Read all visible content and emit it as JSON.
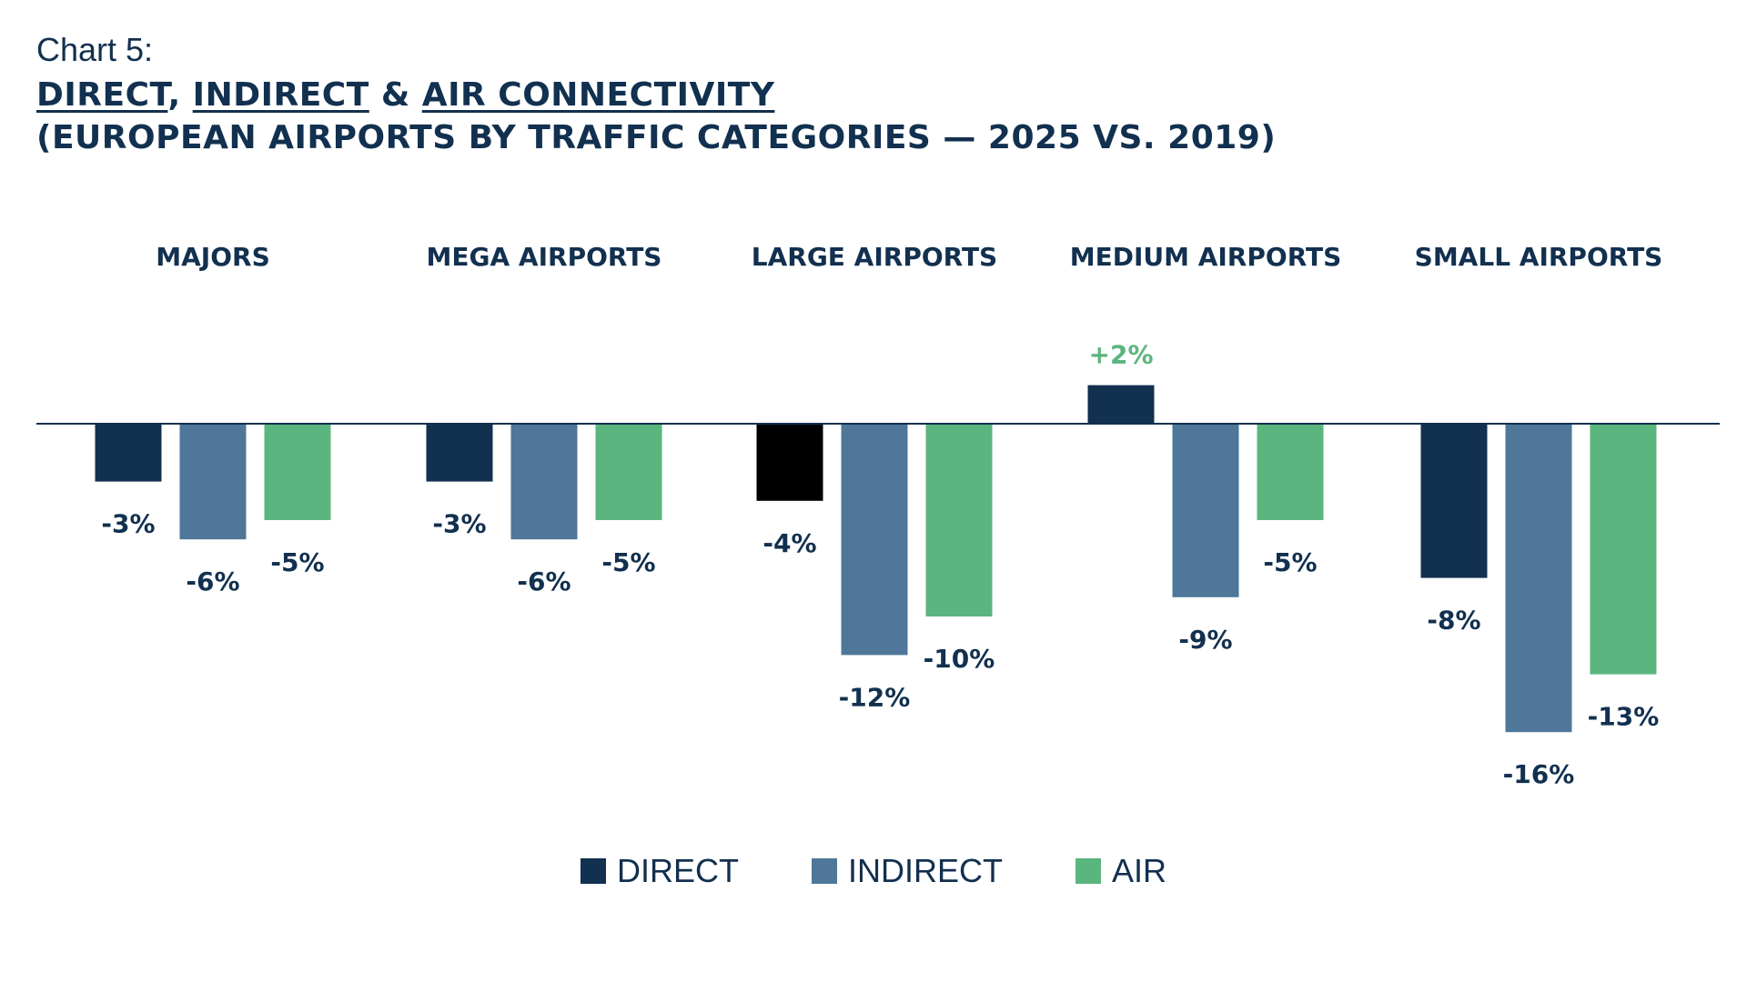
{
  "header": {
    "chart_label": "Chart 5:",
    "title_direct": "DIRECT",
    "title_comma": ",",
    "title_indirect": "INDIRECT",
    "title_amp": "&",
    "title_air": "AIR CONNECTIVITY",
    "subtitle": "(EUROPEAN AIRPORTS BY TRAFFIC CATEGORIES — 2025 VS. 2019)"
  },
  "colors": {
    "direct": "#12304f",
    "indirect": "#4e7799",
    "air": "#5bb57e",
    "positive_label": "#5bb57e",
    "baseline": "#12304f"
  },
  "chart_data": {
    "type": "bar",
    "categories": [
      "MAJORS",
      "MEGA AIRPORTS",
      "LARGE AIRPORTS",
      "MEDIUM AIRPORTS",
      "SMALL AIRPORTS"
    ],
    "series": [
      {
        "name": "DIRECT",
        "values": [
          -3,
          -3,
          -4,
          2,
          -8
        ],
        "labels": [
          "-3%",
          "-3%",
          "-4%",
          "+2%",
          "-8%"
        ]
      },
      {
        "name": "INDIRECT",
        "values": [
          -6,
          -6,
          -12,
          -9,
          -16
        ],
        "labels": [
          "-6%",
          "-6%",
          "-12%",
          "-9%",
          "-16%"
        ]
      },
      {
        "name": "AIR",
        "values": [
          -5,
          -5,
          -10,
          -5,
          -13
        ],
        "labels": [
          "-5%",
          "-5%",
          "-10%",
          "-5%",
          "-13%"
        ]
      }
    ],
    "ylim": [
      -17,
      4
    ],
    "grid": false,
    "legend": "bottom-center"
  }
}
